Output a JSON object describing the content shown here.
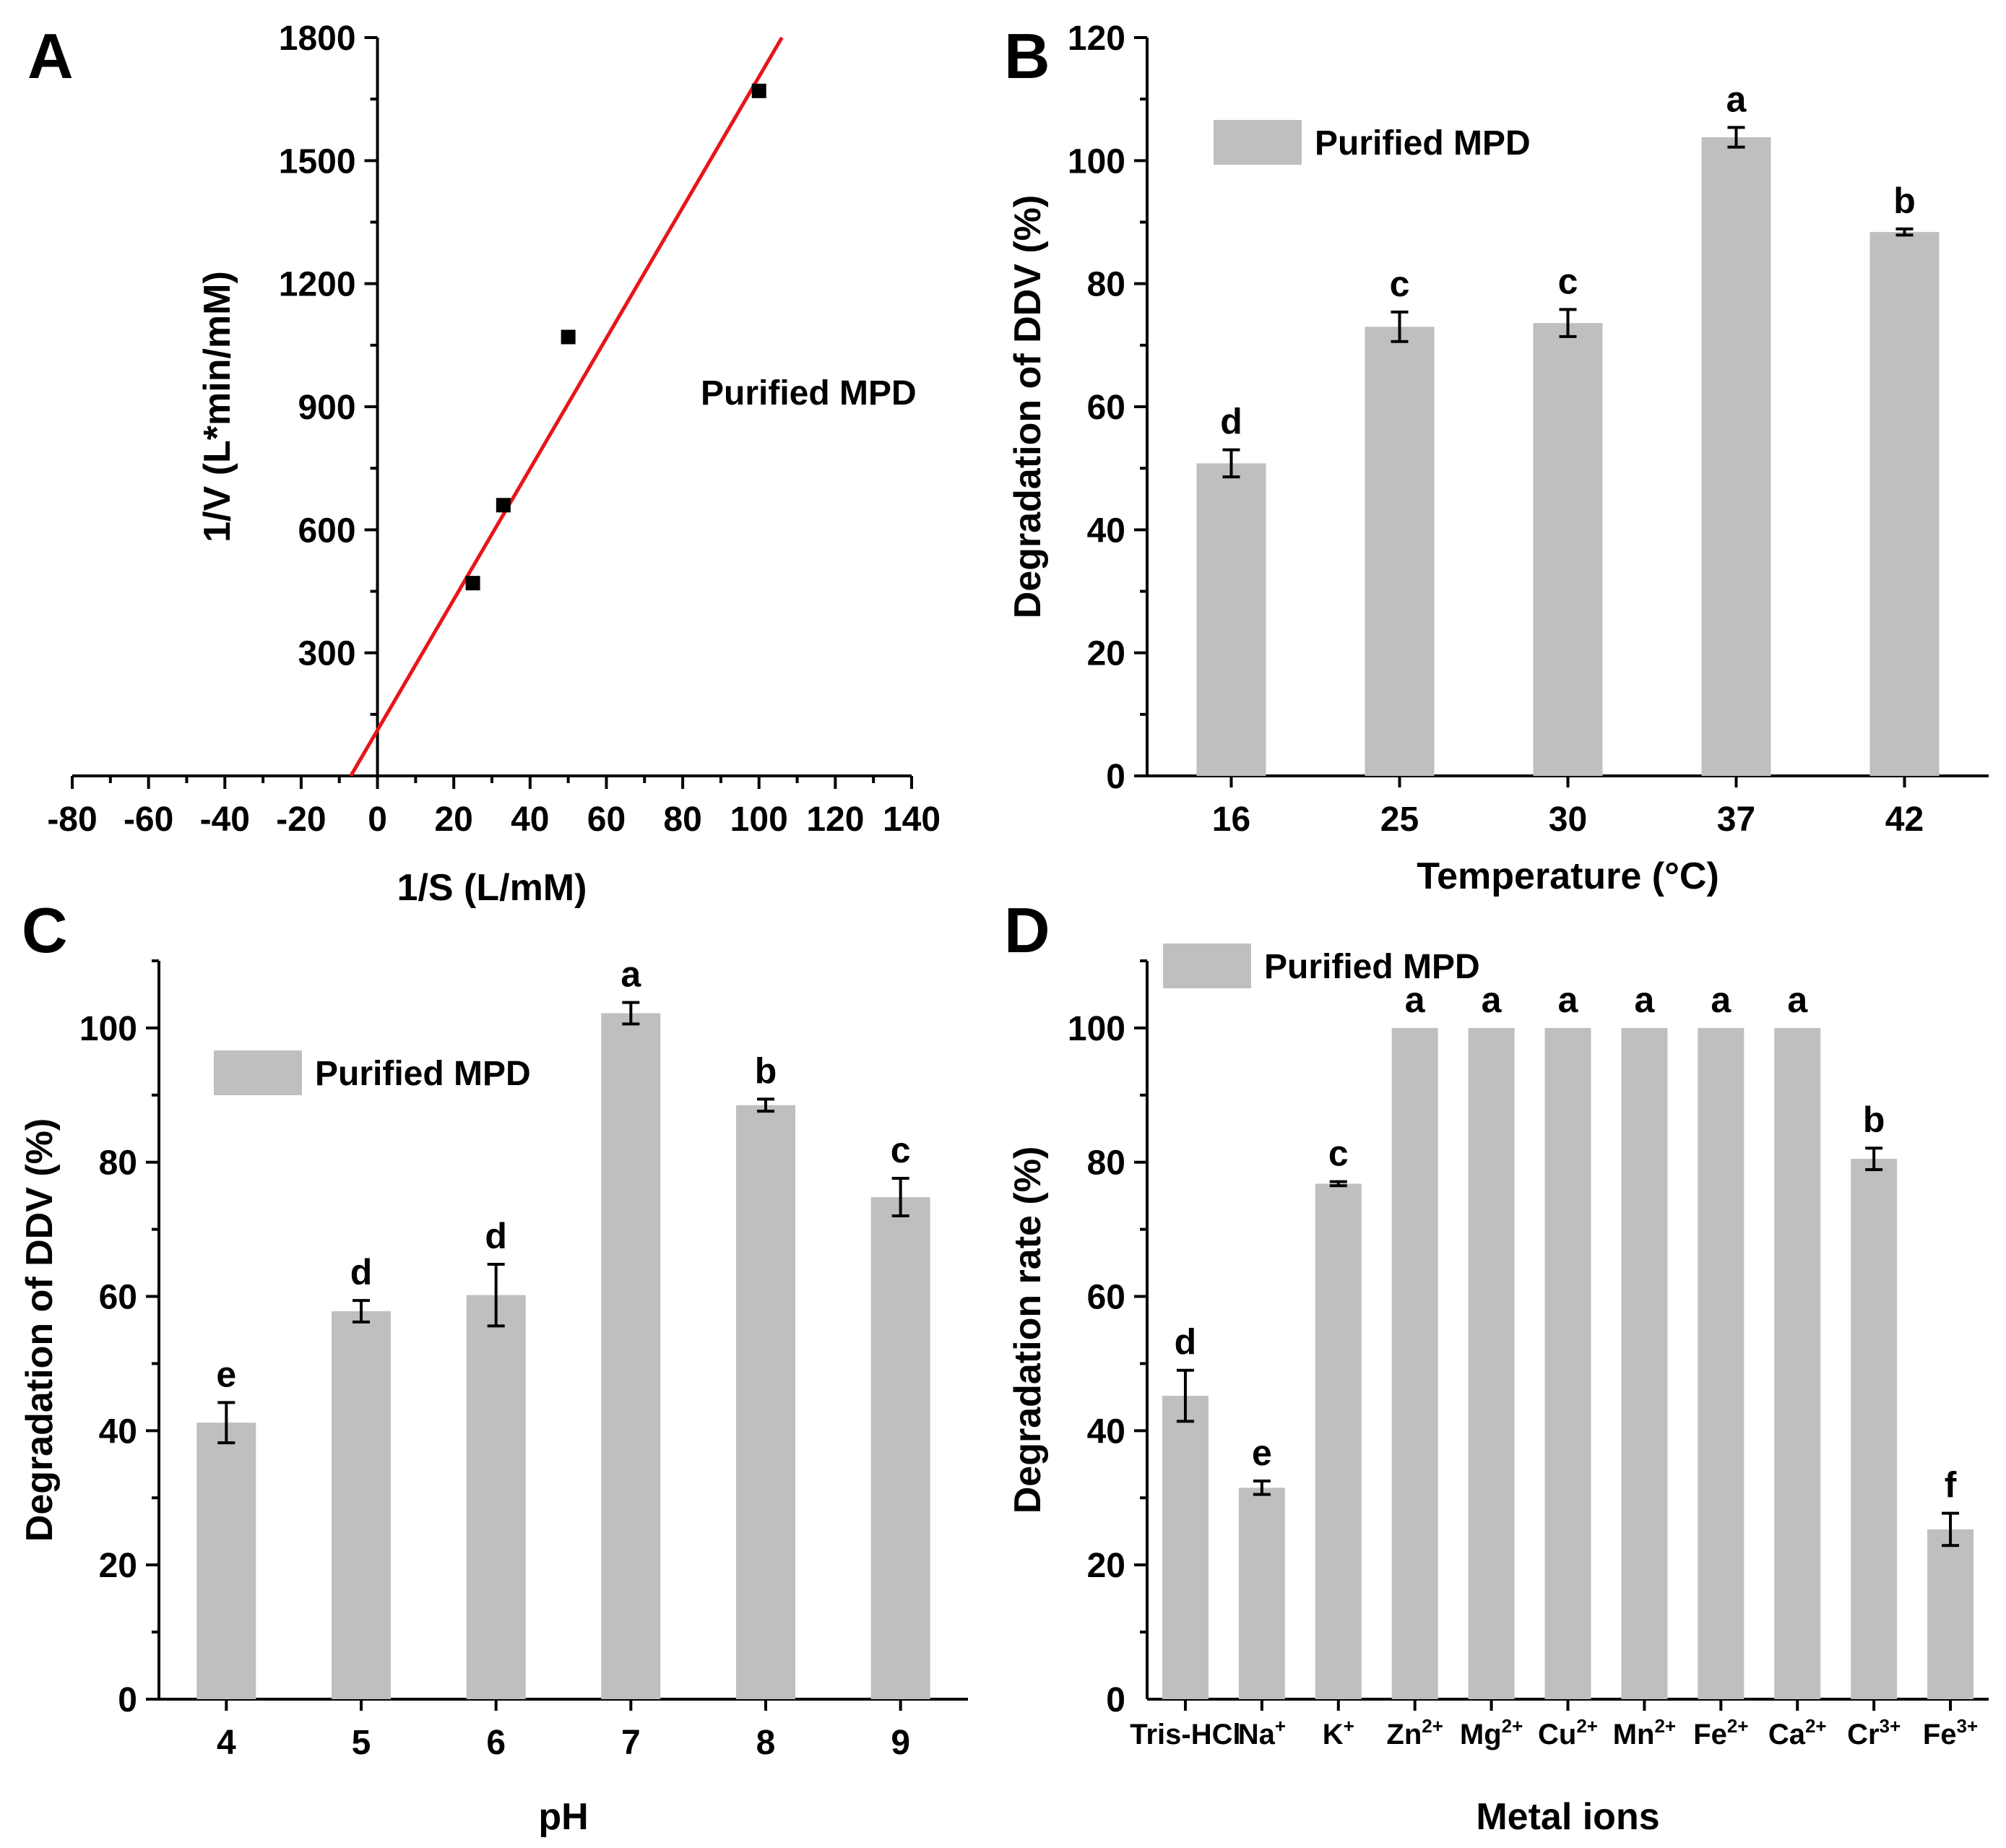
{
  "chart_data": [
    {
      "panel": "A",
      "type": "scatter",
      "series": [
        {
          "name": "Purified MPD",
          "x": [
            25,
            33,
            50,
            100
          ],
          "y": [
            470,
            660,
            1070,
            1670
          ]
        }
      ],
      "fit_line": {
        "x": [
          -7,
          106
        ],
        "y": [
          0,
          1800
        ],
        "color": "#e8141a"
      },
      "annotation": "Purified MPD",
      "xlabel": "1/S (L/mM)",
      "ylabel": "1/V (L*min/mM)",
      "xlim": [
        -80,
        140
      ],
      "ylim": [
        0,
        1800
      ],
      "xticks": [
        "-80",
        "-60",
        "-40",
        "-20",
        "0",
        "20",
        "40",
        "60",
        "80",
        "100",
        "120",
        "140"
      ],
      "yticks": [
        "300",
        "600",
        "900",
        "1200",
        "1500",
        "1800"
      ]
    },
    {
      "panel": "B",
      "type": "bar",
      "categories": [
        "16",
        "25",
        "30",
        "37",
        "42"
      ],
      "values": [
        50.8,
        73.0,
        73.6,
        103.8,
        88.4
      ],
      "errors": [
        2.2,
        2.4,
        2.2,
        1.6,
        0.5
      ],
      "labels": [
        "d",
        "c",
        "c",
        "a",
        "b"
      ],
      "legend": "Purified MPD",
      "xlabel": "Temperature (°C)",
      "ylabel": "Degradation of DDV (%)",
      "ylim": [
        0,
        120
      ],
      "yticks": [
        "0",
        "20",
        "40",
        "60",
        "80",
        "100",
        "120"
      ]
    },
    {
      "panel": "C",
      "type": "bar",
      "categories": [
        "4",
        "5",
        "6",
        "7",
        "8",
        "9"
      ],
      "values": [
        41.2,
        57.8,
        60.2,
        102.2,
        88.5,
        74.8
      ],
      "errors": [
        3.0,
        1.6,
        4.6,
        1.6,
        0.9,
        2.8
      ],
      "labels": [
        "e",
        "d",
        "d",
        "a",
        "b",
        "c"
      ],
      "legend": "Purified MPD",
      "xlabel": "pH",
      "ylabel": "Degradation of DDV (%)",
      "ylim": [
        0,
        110
      ],
      "yticks": [
        "0",
        "20",
        "40",
        "60",
        "80",
        "100"
      ]
    },
    {
      "panel": "D",
      "type": "bar",
      "categories": [
        {
          "base": "Tris-HCl",
          "sup": ""
        },
        {
          "base": "Na",
          "sup": "+"
        },
        {
          "base": "K",
          "sup": "+"
        },
        {
          "base": "Zn",
          "sup": "2+"
        },
        {
          "base": "Mg",
          "sup": "2+"
        },
        {
          "base": "Cu",
          "sup": "2+"
        },
        {
          "base": "Mn",
          "sup": "2+"
        },
        {
          "base": "Fe",
          "sup": "2+"
        },
        {
          "base": "Ca",
          "sup": "2+"
        },
        {
          "base": "Cr",
          "sup": "3+"
        },
        {
          "base": "Fe",
          "sup": "3+"
        }
      ],
      "values": [
        45.2,
        31.5,
        76.8,
        100,
        100,
        100,
        100,
        100,
        100,
        80.5,
        25.3
      ],
      "errors": [
        3.8,
        1.0,
        0.3,
        0,
        0,
        0,
        0,
        0,
        0,
        1.6,
        2.4
      ],
      "labels": [
        "d",
        "e",
        "c",
        "a",
        "a",
        "a",
        "a",
        "a",
        "a",
        "b",
        "f"
      ],
      "legend": "Purified MPD",
      "xlabel": "Metal ions",
      "ylabel": "Degradation rate (%)",
      "ylim": [
        0,
        110
      ],
      "yticks": [
        "20",
        "40",
        "60",
        "80",
        "100"
      ]
    }
  ]
}
